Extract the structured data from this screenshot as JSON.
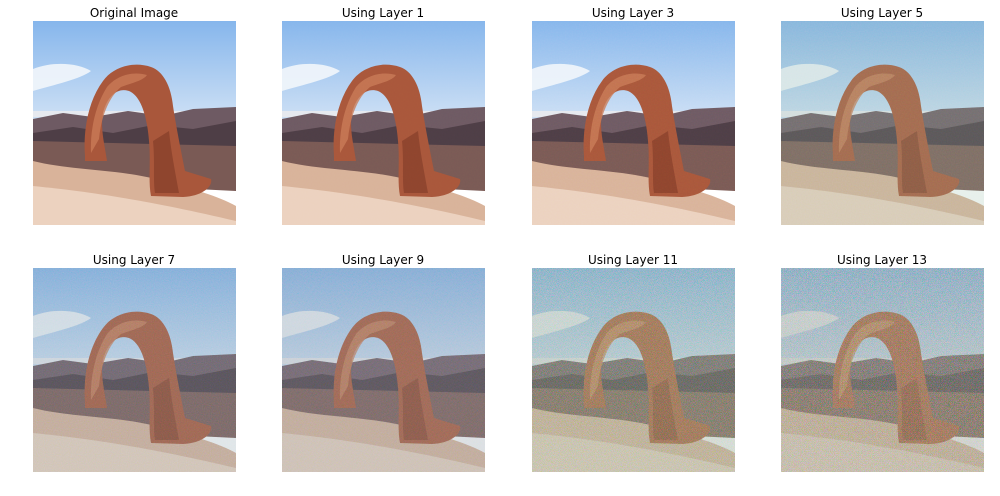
{
  "panels": [
    {
      "title": "Original Image",
      "noise": 0,
      "tint": ""
    },
    {
      "title": "Using Layer 1",
      "noise": 0.05,
      "tint": ""
    },
    {
      "title": "Using Layer 3",
      "noise": 0.12,
      "tint": ""
    },
    {
      "title": "Using Layer 5",
      "noise": 0.18,
      "tint": "#8fb8a0"
    },
    {
      "title": "Using Layer 7",
      "noise": 0.28,
      "tint": "#7f95a3"
    },
    {
      "title": "Using Layer 9",
      "noise": 0.4,
      "tint": "#7e8f9a"
    },
    {
      "title": "Using Layer 11",
      "noise": 0.7,
      "tint": "#8a9a8a"
    },
    {
      "title": "Using Layer 13",
      "noise": 0.9,
      "tint": "#8d8c8a"
    }
  ],
  "colors": {
    "sky_top": "#86b6ec",
    "sky_bottom": "#cfe1f5",
    "cloud": "#f2f6fb",
    "mountain": "#6e5a63",
    "mountain_dark": "#4e3e46",
    "canyon": "#7a5a55",
    "ground": "#d9b39a",
    "ground_light": "#ecd2bf",
    "arch": "#a9573b",
    "arch_light": "#c97a58",
    "arch_dark": "#7a3624"
  },
  "icons": [
    "delicate-arch-image"
  ]
}
